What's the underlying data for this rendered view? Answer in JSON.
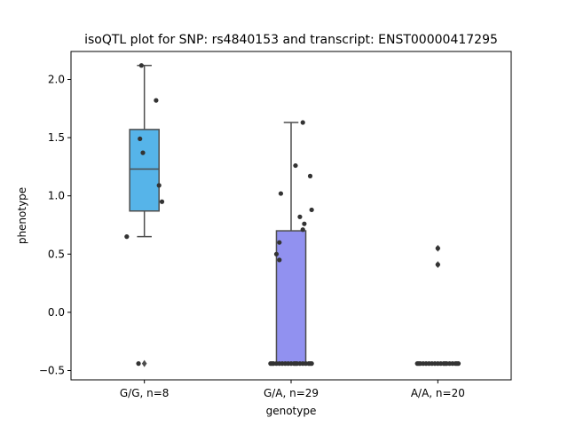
{
  "chart_data": {
    "type": "box",
    "title": "isoQTL plot for SNP: rs4840153 and transcript: ENST00000417295",
    "xlabel": "genotype",
    "ylabel": "phenotype",
    "ylim": [
      -0.58,
      2.24
    ],
    "yticks": [
      -0.5,
      0.0,
      0.5,
      1.0,
      1.5,
      2.0
    ],
    "ytick_labels": [
      "−0.5",
      "0.0",
      "0.5",
      "1.0",
      "1.5",
      "2.0"
    ],
    "grid": false,
    "categories": [
      "G/G, n=8",
      "G/A, n=29",
      "A/A, n=20"
    ],
    "boxes": [
      {
        "category": "G/G, n=8",
        "color": "#56b4e9",
        "q1": 0.87,
        "median": 1.23,
        "q3": 1.57,
        "whisker_low": 0.65,
        "whisker_high": 2.12,
        "outliers": [
          -0.44
        ]
      },
      {
        "category": "G/A, n=29",
        "color": "#9191f0",
        "q1": -0.44,
        "median": -0.44,
        "q3": 0.7,
        "whisker_low": -0.44,
        "whisker_high": 1.63,
        "outliers": []
      },
      {
        "category": "A/A, n=20",
        "color": "#9b9b9b",
        "q1": -0.44,
        "median": -0.44,
        "q3": -0.44,
        "whisker_low": -0.44,
        "whisker_high": -0.44,
        "outliers": [
          0.55,
          0.41
        ]
      }
    ],
    "points": [
      [
        {
          "dx": -0.12,
          "y": 0.65
        },
        {
          "dx": -0.02,
          "y": 2.12
        },
        {
          "dx": 0.08,
          "y": 1.82
        },
        {
          "dx": -0.03,
          "y": 1.49
        },
        {
          "dx": -0.01,
          "y": 1.37
        },
        {
          "dx": 0.1,
          "y": 1.09
        },
        {
          "dx": 0.12,
          "y": 0.95
        },
        {
          "dx": -0.04,
          "y": -0.44
        }
      ],
      [
        {
          "dx": 0.08,
          "y": 1.63
        },
        {
          "dx": 0.03,
          "y": 1.26
        },
        {
          "dx": 0.13,
          "y": 1.17
        },
        {
          "dx": -0.07,
          "y": 1.02
        },
        {
          "dx": 0.14,
          "y": 0.88
        },
        {
          "dx": 0.06,
          "y": 0.82
        },
        {
          "dx": 0.09,
          "y": 0.76
        },
        {
          "dx": 0.08,
          "y": 0.71
        },
        {
          "dx": -0.08,
          "y": 0.6
        },
        {
          "dx": -0.1,
          "y": 0.5
        },
        {
          "dx": -0.08,
          "y": 0.45
        },
        {
          "dx": -0.14,
          "y": -0.44
        },
        {
          "dx": -0.12,
          "y": -0.44
        },
        {
          "dx": -0.1,
          "y": -0.44
        },
        {
          "dx": -0.08,
          "y": -0.44
        },
        {
          "dx": -0.06,
          "y": -0.44
        },
        {
          "dx": -0.04,
          "y": -0.44
        },
        {
          "dx": -0.02,
          "y": -0.44
        },
        {
          "dx": 0.0,
          "y": -0.44
        },
        {
          "dx": 0.02,
          "y": -0.44
        },
        {
          "dx": 0.04,
          "y": -0.44
        },
        {
          "dx": 0.06,
          "y": -0.44
        },
        {
          "dx": 0.08,
          "y": -0.44
        },
        {
          "dx": 0.1,
          "y": -0.44
        },
        {
          "dx": 0.12,
          "y": -0.44
        },
        {
          "dx": 0.14,
          "y": -0.44
        },
        {
          "dx": -0.13,
          "y": -0.44
        },
        {
          "dx": 0.03,
          "y": -0.44
        },
        {
          "dx": 0.13,
          "y": -0.44
        }
      ],
      [
        {
          "dx": 0.0,
          "y": 0.55
        },
        {
          "dx": 0.0,
          "y": 0.41
        },
        {
          "dx": -0.14,
          "y": -0.44
        },
        {
          "dx": -0.12,
          "y": -0.44
        },
        {
          "dx": -0.1,
          "y": -0.44
        },
        {
          "dx": -0.08,
          "y": -0.44
        },
        {
          "dx": -0.06,
          "y": -0.44
        },
        {
          "dx": -0.04,
          "y": -0.44
        },
        {
          "dx": -0.02,
          "y": -0.44
        },
        {
          "dx": 0.0,
          "y": -0.44
        },
        {
          "dx": 0.02,
          "y": -0.44
        },
        {
          "dx": 0.04,
          "y": -0.44
        },
        {
          "dx": 0.06,
          "y": -0.44
        },
        {
          "dx": 0.08,
          "y": -0.44
        },
        {
          "dx": 0.1,
          "y": -0.44
        },
        {
          "dx": 0.12,
          "y": -0.44
        },
        {
          "dx": 0.14,
          "y": -0.44
        },
        {
          "dx": -0.13,
          "y": -0.44
        },
        {
          "dx": 0.05,
          "y": -0.44
        },
        {
          "dx": 0.13,
          "y": -0.44
        }
      ]
    ]
  }
}
